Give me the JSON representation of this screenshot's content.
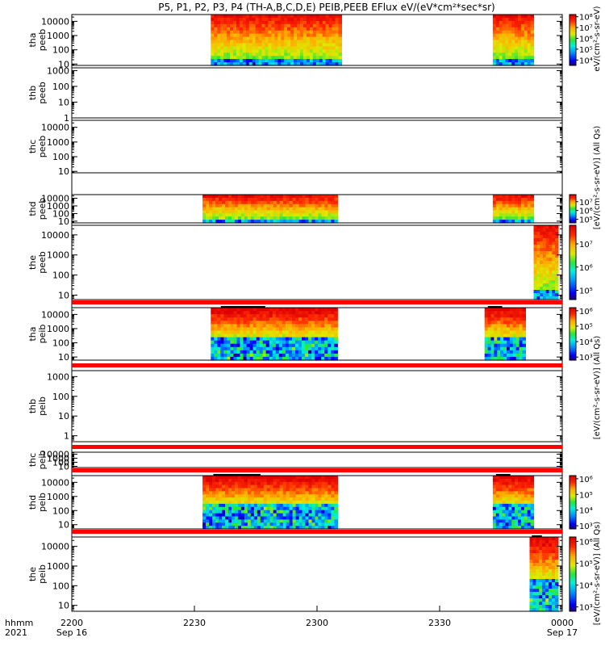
{
  "title": "P5, P1, P2, P3, P4 (TH-A,B,C,D,E) PEIB,PEEB EFlux eV/(eV*cm²*sec*sr)",
  "axis_labels": {
    "cbar_peeb_th_a": "eV/(cm²-s-sr-eV)",
    "cbar_peeb_units": "[eV/(cm²-s-sr-eV)] (All Qs)",
    "cbar_peib_units": "[eV/(cm²-s-sr-eV)] (All Qs)"
  },
  "time_axis": {
    "row_label_1": "hhmm",
    "row_label_2": "2021",
    "ticks": [
      {
        "label": "2200",
        "date": "Sep 16"
      },
      {
        "label": "2230",
        "date": ""
      },
      {
        "label": "2300",
        "date": ""
      },
      {
        "label": "2330",
        "date": ""
      },
      {
        "label": "0000",
        "date": "Sep 17"
      }
    ]
  },
  "chart_data": {
    "type": "heatmap",
    "x": {
      "start": "2021-09-16 22:00",
      "end": "2021-09-17 00:00",
      "ticks": [
        "2200",
        "2230",
        "2300",
        "2330",
        "0000"
      ]
    },
    "y_scale": "log",
    "colormap": "rainbow (blue-cyan-green-yellow-red)",
    "panels": [
      {
        "label": [
          "tha",
          "peeb"
        ],
        "ylim": [
          8,
          30000
        ],
        "yticks": [
          "10",
          "100",
          "1000",
          "10000"
        ],
        "cbar_ticks": [
          "10⁴",
          "10⁵",
          "10⁶",
          "10⁷",
          "10⁸"
        ],
        "cbar_range": [
          3.5,
          8.2
        ],
        "data_intervals": [
          [
            "22:34",
            "23:06"
          ],
          [
            "23:43",
            "23:53"
          ]
        ]
      },
      {
        "label": [
          "thb",
          "peeb"
        ],
        "ylim": [
          1,
          1500
        ],
        "yticks": [
          "1",
          "10",
          "100",
          "1000"
        ],
        "data_intervals": []
      },
      {
        "label": [
          "thc",
          "peeb"
        ],
        "ylim": [
          8,
          30000
        ],
        "yticks": [
          "10",
          "100",
          "1000",
          "10000"
        ],
        "data_intervals": []
      },
      {
        "label": [
          "thd",
          "peeb"
        ],
        "ylim": [
          6,
          30000
        ],
        "yticks": [
          "10",
          "100",
          "1000",
          "10000"
        ],
        "cbar_ticks": [
          "10⁵",
          "10⁶",
          "10⁷"
        ],
        "cbar_range": [
          4.6,
          7.8
        ],
        "data_intervals": [
          [
            "22:32",
            "23:05"
          ],
          [
            "23:43",
            "23:53"
          ]
        ]
      },
      {
        "label": [
          "the",
          "peeb"
        ],
        "ylim": [
          6,
          30000
        ],
        "yticks": [
          "10",
          "100",
          "1000",
          "10000"
        ],
        "cbar_ticks": [
          "10⁵",
          "10⁶",
          "10⁷"
        ],
        "cbar_range": [
          4.6,
          7.8
        ],
        "data_intervals": [
          [
            "23:53",
            "23:59"
          ]
        ]
      },
      {
        "label": [
          "tha",
          "peib"
        ],
        "ylim": [
          6,
          30000
        ],
        "yticks": [
          "10",
          "100",
          "1000",
          "10000"
        ],
        "cbar_ticks": [
          "10³",
          "10⁴",
          "10⁵",
          "10⁶"
        ],
        "cbar_range": [
          2.8,
          6.2
        ],
        "data_intervals": [
          [
            "22:34",
            "23:05"
          ],
          [
            "23:41",
            "23:51"
          ]
        ]
      },
      {
        "label": [
          "thb",
          "peib"
        ],
        "ylim": [
          0.5,
          2000
        ],
        "yticks": [
          "1",
          "10",
          "100",
          "1000"
        ],
        "data_intervals": []
      },
      {
        "label": [
          "thc",
          "peib"
        ],
        "ylim": [
          5,
          30000
        ],
        "yticks": [
          "10",
          "100",
          "1000",
          "10000"
        ],
        "data_intervals": []
      },
      {
        "label": [
          "thd",
          "peib"
        ],
        "ylim": [
          5,
          30000
        ],
        "yticks": [
          "10",
          "100",
          "1000",
          "10000"
        ],
        "cbar_ticks": [
          "10³",
          "10⁴",
          "10⁵",
          "10⁶"
        ],
        "cbar_range": [
          2.8,
          6.2
        ],
        "data_intervals": [
          [
            "22:32",
            "23:05"
          ],
          [
            "23:43",
            "23:53"
          ]
        ]
      },
      {
        "label": [
          "the",
          "peib"
        ],
        "ylim": [
          5,
          30000
        ],
        "yticks": [
          "10",
          "100",
          "1000",
          "10000"
        ],
        "cbar_ticks": [
          "10³",
          "10⁴",
          "10⁵",
          "10⁶"
        ],
        "cbar_range": [
          2.8,
          6.2
        ],
        "data_intervals": [
          [
            "23:52",
            "23:59"
          ]
        ]
      }
    ]
  }
}
